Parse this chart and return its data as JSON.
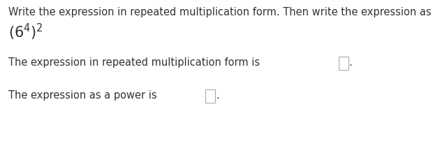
{
  "background_color": "#ffffff",
  "title_text": "Write the expression in repeated multiplication form. Then write the expression as a power.",
  "line1_prefix": "The expression in repeated multiplication form is ",
  "line2_prefix": "The expression as a power is ",
  "title_fontsize": 10.5,
  "expr_fontsize": 13,
  "body_fontsize": 10.5,
  "text_color": "#333333",
  "box_edgecolor": "#aaaaaa",
  "box_fill": "#ffffff"
}
